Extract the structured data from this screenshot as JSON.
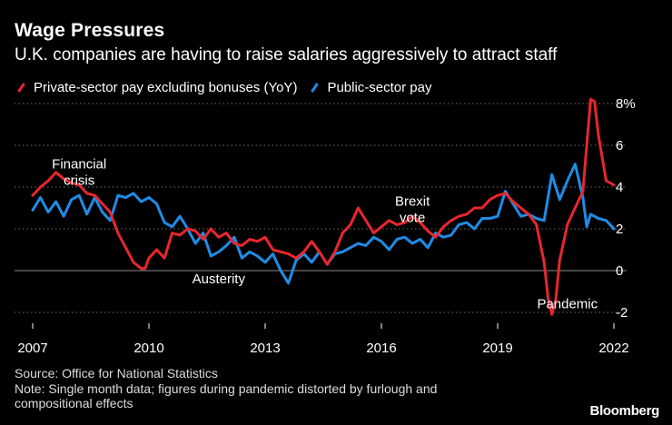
{
  "title": "Wage Pressures",
  "subtitle": "U.K. companies are having to raise salaries aggressively to attract staff",
  "legend": [
    {
      "name": "Private-sector pay excluding bonuses (YoY)",
      "color": "#e8262e"
    },
    {
      "name": "Public-sector pay",
      "color": "#1f8ce6"
    }
  ],
  "footer": {
    "source": "Source: Office for National Statistics",
    "note_line1": "Note: Single month data; figures during pandemic distorted by furlough and",
    "note_line2": "compositional effects"
  },
  "brand": "Bloomberg",
  "chart_data": {
    "type": "line",
    "title": "Wage Pressures",
    "xlabel": "",
    "ylabel": "",
    "xlim": [
      2007.0,
      2022.0
    ],
    "ylim": [
      -2,
      8
    ],
    "grid": true,
    "x_ticks": [
      2007,
      2010,
      2013,
      2016,
      2019,
      2022
    ],
    "x_tick_labels": [
      "2007",
      "2010",
      "2013",
      "2016",
      "2019",
      "2022"
    ],
    "y_ticks": [
      -2,
      0,
      2,
      4,
      6,
      8
    ],
    "y_tick_labels": [
      "-2",
      "0",
      "2",
      "4",
      "6",
      "8%"
    ],
    "annotations": [
      {
        "id": "financial-crisis",
        "lines": [
          "Financial",
          "crisis"
        ],
        "x": 2008.2,
        "y": 4.9
      },
      {
        "id": "austerity",
        "lines": [
          "Austerity"
        ],
        "x": 2011.8,
        "y": -0.6
      },
      {
        "id": "brexit",
        "lines": [
          "Brexit",
          "vote"
        ],
        "x": 2016.8,
        "y": 3.1
      },
      {
        "id": "pandemic",
        "lines": [
          "Pandemic"
        ],
        "x": 2020.8,
        "y": -1.8
      }
    ],
    "series": [
      {
        "name": "Private-sector pay excluding bonuses (YoY)",
        "color": "#e8262e",
        "x": [
          2007.0,
          2007.2,
          2007.4,
          2007.6,
          2007.8,
          2008.0,
          2008.2,
          2008.4,
          2008.6,
          2008.8,
          2009.0,
          2009.2,
          2009.4,
          2009.6,
          2009.8,
          2009.9,
          2010.0,
          2010.2,
          2010.4,
          2010.6,
          2010.8,
          2011.0,
          2011.2,
          2011.4,
          2011.6,
          2011.8,
          2012.0,
          2012.2,
          2012.4,
          2012.6,
          2012.8,
          2013.0,
          2013.2,
          2013.4,
          2013.6,
          2013.8,
          2014.0,
          2014.2,
          2014.4,
          2014.6,
          2014.8,
          2015.0,
          2015.2,
          2015.4,
          2015.6,
          2015.8,
          2016.0,
          2016.2,
          2016.4,
          2016.6,
          2016.8,
          2017.0,
          2017.2,
          2017.4,
          2017.6,
          2017.8,
          2018.0,
          2018.2,
          2018.4,
          2018.6,
          2018.8,
          2019.0,
          2019.2,
          2019.4,
          2019.6,
          2019.8,
          2020.0,
          2020.2,
          2020.3,
          2020.4,
          2020.5,
          2020.6,
          2020.8,
          2021.0,
          2021.2,
          2021.3,
          2021.4,
          2021.5,
          2021.6,
          2021.8,
          2022.0
        ],
        "y": [
          3.6,
          4.0,
          4.3,
          4.7,
          4.4,
          4.2,
          4.1,
          3.7,
          3.6,
          3.2,
          2.8,
          1.8,
          1.1,
          0.4,
          0.1,
          0.1,
          0.6,
          1.0,
          0.6,
          1.8,
          1.7,
          2.0,
          1.9,
          1.5,
          2.0,
          1.6,
          1.8,
          1.3,
          1.2,
          1.5,
          1.4,
          1.6,
          1.0,
          0.9,
          0.8,
          0.6,
          0.9,
          1.4,
          0.9,
          0.3,
          0.9,
          1.8,
          2.2,
          3.0,
          2.4,
          1.8,
          2.1,
          2.4,
          2.2,
          2.3,
          2.6,
          2.3,
          1.9,
          1.6,
          2.1,
          2.4,
          2.6,
          2.7,
          3.0,
          3.0,
          3.4,
          3.6,
          3.7,
          3.3,
          3.0,
          2.7,
          2.2,
          0.4,
          -1.3,
          -2.1,
          -1.4,
          0.5,
          2.2,
          3.0,
          3.8,
          6.0,
          8.2,
          8.1,
          6.5,
          4.3,
          4.1
        ]
      },
      {
        "name": "Public-sector pay",
        "color": "#1f8ce6",
        "x": [
          2007.0,
          2007.2,
          2007.4,
          2007.6,
          2007.8,
          2008.0,
          2008.2,
          2008.4,
          2008.6,
          2008.8,
          2009.0,
          2009.2,
          2009.4,
          2009.6,
          2009.8,
          2010.0,
          2010.2,
          2010.4,
          2010.6,
          2010.8,
          2011.0,
          2011.2,
          2011.4,
          2011.6,
          2011.8,
          2012.0,
          2012.2,
          2012.4,
          2012.6,
          2012.8,
          2013.0,
          2013.2,
          2013.4,
          2013.6,
          2013.8,
          2014.0,
          2014.2,
          2014.4,
          2014.6,
          2014.8,
          2015.0,
          2015.2,
          2015.4,
          2015.6,
          2015.8,
          2016.0,
          2016.2,
          2016.4,
          2016.6,
          2016.8,
          2017.0,
          2017.2,
          2017.4,
          2017.6,
          2017.8,
          2018.0,
          2018.2,
          2018.4,
          2018.6,
          2018.8,
          2019.0,
          2019.2,
          2019.4,
          2019.6,
          2019.8,
          2020.0,
          2020.2,
          2020.4,
          2020.6,
          2020.8,
          2021.0,
          2021.2,
          2021.3,
          2021.4,
          2021.6,
          2021.8,
          2022.0
        ],
        "y": [
          2.9,
          3.5,
          2.8,
          3.3,
          2.6,
          3.4,
          3.6,
          2.7,
          3.5,
          2.8,
          2.4,
          3.6,
          3.5,
          3.7,
          3.3,
          3.5,
          3.2,
          2.3,
          2.1,
          2.6,
          2.0,
          1.3,
          1.8,
          0.7,
          0.9,
          1.2,
          1.6,
          0.6,
          0.9,
          0.7,
          0.4,
          0.8,
          0.0,
          -0.6,
          0.5,
          0.8,
          0.4,
          0.9,
          0.3,
          0.8,
          0.9,
          1.1,
          1.3,
          1.2,
          1.6,
          1.4,
          1.0,
          1.5,
          1.6,
          1.3,
          1.5,
          1.1,
          1.8,
          1.6,
          1.7,
          2.2,
          2.3,
          2.0,
          2.5,
          2.5,
          2.6,
          3.8,
          3.2,
          2.6,
          2.7,
          2.5,
          2.4,
          4.6,
          3.4,
          4.3,
          5.1,
          3.5,
          2.1,
          2.7,
          2.5,
          2.4,
          2.0
        ]
      }
    ]
  }
}
